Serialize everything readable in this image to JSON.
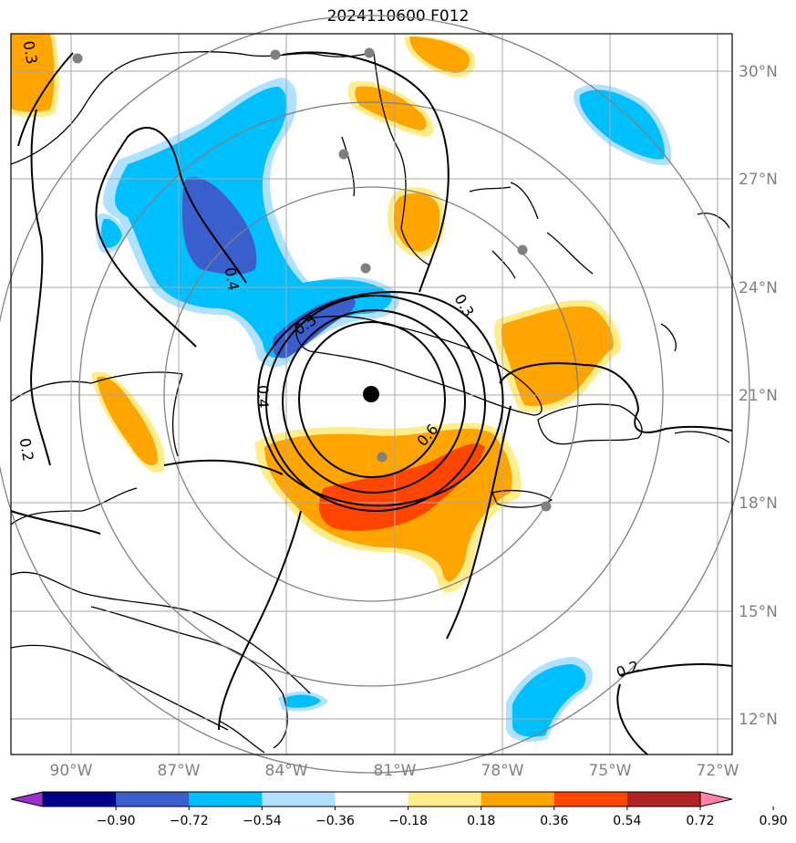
{
  "title": "2024110600 F012",
  "lat_labels": [
    "30°N",
    "27°N",
    "24°N",
    "21°N",
    "18°N",
    "15°N",
    "12°N"
  ],
  "lon_labels": [
    "90°W",
    "87°W",
    "84°W",
    "81°W",
    "78°W",
    "75°W",
    "72°W"
  ],
  "colorbar": {
    "ticks": [
      "−0.90",
      "−0.72",
      "−0.54",
      "−0.36",
      "−0.18",
      "0.18",
      "0.36",
      "0.54",
      "0.72",
      "0.90"
    ],
    "colors": [
      "#9932cc",
      "#00008b",
      "#3a5fcd",
      "#00bfff",
      "#b0e2ff",
      "#ffffff",
      "#ffec8b",
      "#ffa500",
      "#ff4500",
      "#b22222",
      "#ff82ab"
    ]
  },
  "contour_labels": [
    "0.3",
    "0.3",
    "0.4",
    "0.4",
    "0.5",
    "0.6",
    "0.2",
    "0.2"
  ],
  "center_marker": "storm-center"
}
